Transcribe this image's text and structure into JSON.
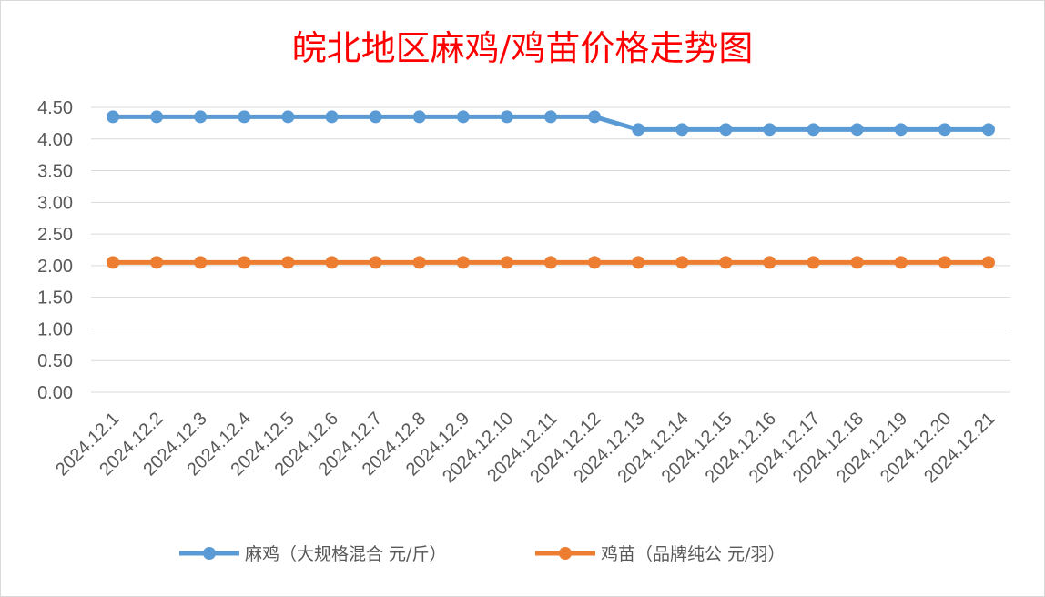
{
  "chart_data": {
    "type": "line",
    "title": "皖北地区麻鸡/鸡苗价格走势图",
    "categories": [
      "2024.12.1",
      "2024.12.2",
      "2024.12.3",
      "2024.12.4",
      "2024.12.5",
      "2024.12.6",
      "2024.12.7",
      "2024.12.8",
      "2024.12.9",
      "2024.12.10",
      "2024.12.11",
      "2024.12.12",
      "2024.12.13",
      "2024.12.14",
      "2024.12.15",
      "2024.12.16",
      "2024.12.17",
      "2024.12.18",
      "2024.12.19",
      "2024.12.20",
      "2024.12.21"
    ],
    "series": [
      {
        "name": "麻鸡（大规格混合 元/斤）",
        "color": "#5b9bd5",
        "values": [
          4.35,
          4.35,
          4.35,
          4.35,
          4.35,
          4.35,
          4.35,
          4.35,
          4.35,
          4.35,
          4.35,
          4.35,
          4.15,
          4.15,
          4.15,
          4.15,
          4.15,
          4.15,
          4.15,
          4.15,
          4.15
        ]
      },
      {
        "name": "鸡苗（品牌纯公 元/羽）",
        "color": "#ed7d31",
        "values": [
          2.05,
          2.05,
          2.05,
          2.05,
          2.05,
          2.05,
          2.05,
          2.05,
          2.05,
          2.05,
          2.05,
          2.05,
          2.05,
          2.05,
          2.05,
          2.05,
          2.05,
          2.05,
          2.05,
          2.05,
          2.05
        ]
      }
    ],
    "ylim": [
      0,
      4.5
    ],
    "yticks": [
      "0.00",
      "0.50",
      "1.00",
      "1.50",
      "2.00",
      "2.50",
      "3.00",
      "3.50",
      "4.00",
      "4.50"
    ],
    "grid": true,
    "legend": "bottom"
  }
}
